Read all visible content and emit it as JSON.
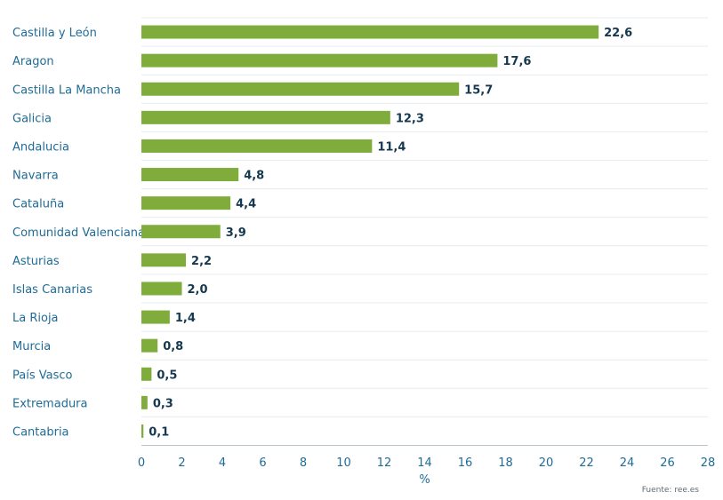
{
  "chart_data": {
    "type": "bar",
    "orientation": "horizontal",
    "categories": [
      "Castilla y León",
      "Aragon",
      "Castilla La Mancha",
      "Galicia",
      "Andalucia",
      "Navarra",
      "Cataluña",
      "Comunidad Valenciana",
      "Asturias",
      "Islas Canarias",
      "La Rioja",
      "Murcia",
      "País Vasco",
      "Extremadura",
      "Cantabria"
    ],
    "values": [
      22.6,
      17.6,
      15.7,
      12.3,
      11.4,
      4.8,
      4.4,
      3.9,
      2.2,
      2.0,
      1.4,
      0.8,
      0.5,
      0.3,
      0.1
    ],
    "value_labels": [
      "22,6",
      "17,6",
      "15,7",
      "12,3",
      "11,4",
      "4,8",
      "4,4",
      "3,9",
      "2,2",
      "2,0",
      "1,4",
      "0,8",
      "0,5",
      "0,3",
      "0,1"
    ],
    "xlabel": "%",
    "xlim": [
      0,
      28
    ],
    "x_ticks": [
      0,
      2,
      4,
      6,
      8,
      10,
      12,
      14,
      16,
      18,
      20,
      22,
      24,
      26,
      28
    ],
    "grid": true,
    "source": "Fuente: ree.es"
  },
  "colors": {
    "bar": "#7fac3a",
    "category_text": "#1f6b96",
    "value_text": "#16384f",
    "grid": "#e7ecef",
    "axis": "#b9c6cf"
  }
}
